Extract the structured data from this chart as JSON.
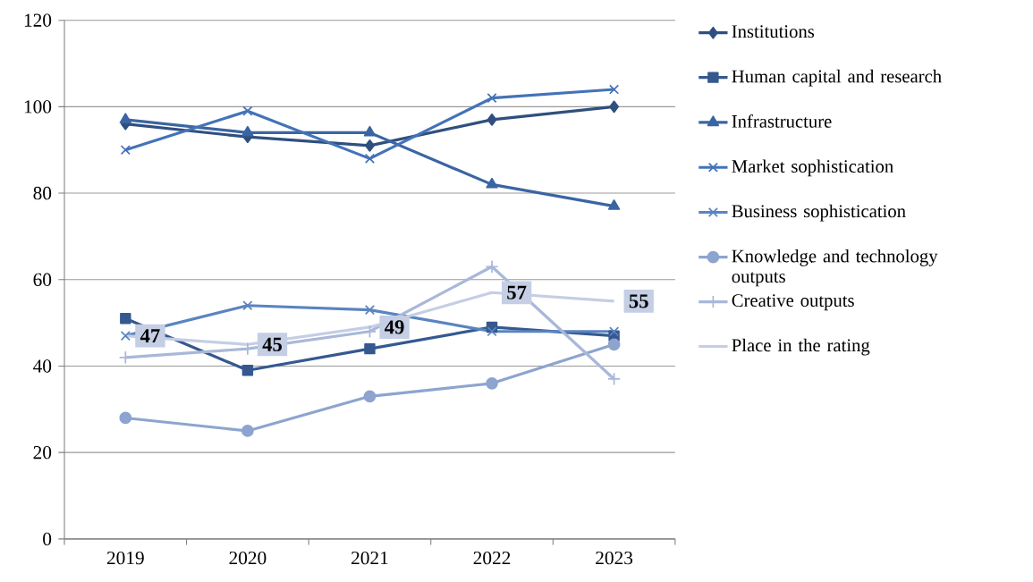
{
  "chart_data": {
    "type": "line",
    "categories": [
      "2019",
      "2020",
      "2021",
      "2022",
      "2023"
    ],
    "series": [
      {
        "name": "Institutions",
        "color": "#2f4f7f",
        "marker": "diamond",
        "values": [
          96,
          93,
          91,
          97,
          100
        ]
      },
      {
        "name": "Human capital and research",
        "color": "#35598f",
        "marker": "square",
        "values": [
          51,
          39,
          44,
          49,
          47
        ]
      },
      {
        "name": "Infrastructure",
        "color": "#3a65a3",
        "marker": "triangle",
        "values": [
          97,
          94,
          94,
          82,
          77
        ]
      },
      {
        "name": "Market sophistication",
        "color": "#4373b8",
        "marker": "cross",
        "values": [
          90,
          99,
          88,
          102,
          104
        ]
      },
      {
        "name": "Business sophistication",
        "color": "#5a84c1",
        "marker": "cross",
        "values": [
          47,
          54,
          53,
          48,
          48
        ]
      },
      {
        "name": "Knowledge and technology outputs",
        "color": "#8da4cf",
        "marker": "circle",
        "values": [
          28,
          25,
          33,
          36,
          45
        ]
      },
      {
        "name": "Creative outputs",
        "color": "#a9b8d9",
        "marker": "plus",
        "values": [
          42,
          44,
          48,
          63,
          37
        ]
      },
      {
        "name": "Place in the rating",
        "color": "#c4cee4",
        "marker": "none",
        "values": [
          47,
          45,
          49,
          57,
          55
        ],
        "value_labels": [
          "47",
          "45",
          "49",
          "57",
          "55"
        ]
      }
    ],
    "ylim": [
      0,
      120
    ],
    "yticks": [
      0,
      20,
      40,
      60,
      80,
      100,
      120
    ],
    "grid": "y",
    "legend": "right",
    "line_style": "solid"
  }
}
